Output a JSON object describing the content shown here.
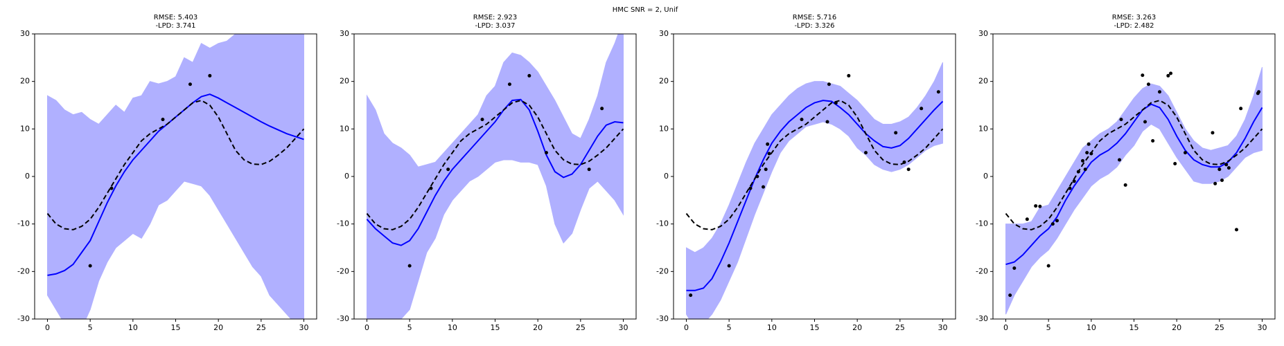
{
  "title": "HMC SNR = 2, Unif",
  "chart_data": [
    {
      "type": "line",
      "title": "RMSE: 5.403",
      "subtitle": "-LPD: 3.741",
      "xlim": [
        -1.5,
        31.5
      ],
      "ylim": [
        -30,
        30
      ],
      "xticks": [
        0,
        5,
        10,
        15,
        20,
        25,
        30
      ],
      "yticks": [
        -30,
        -20,
        -10,
        0,
        10,
        20,
        30
      ],
      "x": [
        0,
        1,
        2,
        3,
        4,
        5,
        6,
        7,
        8,
        9,
        10,
        11,
        12,
        13,
        14,
        15,
        16,
        17,
        18,
        19,
        20,
        21,
        22,
        23,
        24,
        25,
        26,
        27,
        28,
        29,
        30
      ],
      "band": {
        "color": "#b0b0ff",
        "upper": [
          17,
          16,
          14,
          13,
          13.5,
          12,
          11,
          13,
          15,
          13.5,
          16.5,
          17,
          20,
          19.5,
          20,
          21,
          25,
          24,
          28,
          27,
          28,
          28.5,
          30,
          32,
          33,
          35,
          37,
          39,
          41,
          43,
          45
        ],
        "lower": [
          -25,
          -28,
          -31,
          -33,
          -32,
          -28,
          -22,
          -18,
          -15,
          -13.5,
          -12,
          -13,
          -10,
          -6,
          -5,
          -3,
          -1,
          -1.5,
          -2,
          -4,
          -7,
          -10,
          -13,
          -16,
          -19,
          -21,
          -25,
          -27,
          -29,
          -31,
          -30
        ]
      },
      "mean": {
        "color": "#0000ff",
        "values": [
          -20.8,
          -20.5,
          -19.8,
          -18.5,
          -16,
          -13.5,
          -9.5,
          -5.5,
          -2,
          1,
          3.5,
          5.5,
          7.5,
          9.5,
          11,
          12.5,
          14,
          15.5,
          16.8,
          17.3,
          16.5,
          15.5,
          14.5,
          13.5,
          12.5,
          11.5,
          10.6,
          9.8,
          9,
          8.4,
          7.8
        ]
      },
      "truth": {
        "color": "#000000",
        "values": [
          -7.8,
          -10,
          -11,
          -11.2,
          -10.5,
          -9,
          -6.5,
          -3.5,
          -0.5,
          2.5,
          5,
          7.5,
          9,
          10,
          11,
          12.5,
          14,
          15.5,
          16,
          15,
          12.5,
          9,
          5.5,
          3.5,
          2.6,
          2.5,
          3.2,
          4.5,
          6,
          8,
          10
        ]
      },
      "points": {
        "color": "#000000",
        "x": [
          5,
          7.5,
          13.5,
          16.7,
          19
        ],
        "y": [
          -18.8,
          -2.5,
          12,
          19.4,
          21.2
        ]
      }
    },
    {
      "type": "line",
      "title": "RMSE: 2.923",
      "subtitle": "-LPD: 3.037",
      "xlim": [
        -1.5,
        31.5
      ],
      "ylim": [
        -30,
        30
      ],
      "xticks": [
        0,
        5,
        10,
        15,
        20,
        25,
        30
      ],
      "yticks": [
        -30,
        -20,
        -10,
        0,
        10,
        20,
        30
      ],
      "x": [
        0,
        1,
        2,
        3,
        4,
        5,
        6,
        7,
        8,
        9,
        10,
        11,
        12,
        13,
        14,
        15,
        16,
        17,
        18,
        19,
        20,
        21,
        22,
        23,
        24,
        25,
        26,
        27,
        28,
        29,
        30
      ],
      "band": {
        "color": "#b0b0ff",
        "upper": [
          17,
          14,
          9,
          7,
          6,
          4.5,
          2,
          2.5,
          3,
          5,
          7,
          9,
          11,
          13,
          17,
          19,
          24,
          26,
          25.5,
          24,
          22,
          19,
          16,
          12.5,
          9,
          8,
          12,
          17,
          24,
          28,
          33
        ],
        "lower": [
          -30,
          -35,
          -36,
          -34,
          -30,
          -28,
          -22,
          -16,
          -13,
          -8,
          -5,
          -3,
          -1,
          0,
          1.5,
          3,
          3.5,
          3.5,
          3,
          3,
          2.5,
          -2,
          -10,
          -14,
          -12,
          -7,
          -2.5,
          -1,
          -3,
          -5,
          -8
        ]
      },
      "mean": {
        "color": "#0000ff",
        "values": [
          -9,
          -11,
          -12.5,
          -14,
          -14.5,
          -13.5,
          -11,
          -7.5,
          -4,
          -1,
          1.5,
          3.5,
          5.5,
          7.5,
          9.5,
          11.5,
          14,
          16,
          16.2,
          14,
          9.5,
          4.5,
          1,
          -0.2,
          0.5,
          2.5,
          5.5,
          8.5,
          10.8,
          11.5,
          11.3
        ]
      },
      "truth": {
        "color": "#000000",
        "values": [
          -7.8,
          -10,
          -11,
          -11.2,
          -10.5,
          -9,
          -6.5,
          -3.5,
          -0.5,
          2.5,
          5,
          7.5,
          9,
          10,
          11,
          12.5,
          14,
          15.5,
          16,
          15,
          12.5,
          9,
          5.5,
          3.5,
          2.6,
          2.5,
          3.2,
          4.5,
          6,
          8,
          10
        ]
      },
      "points": {
        "color": "#000000",
        "x": [
          5,
          7.5,
          9.5,
          13.5,
          16.7,
          19,
          21,
          26,
          27.5
        ],
        "y": [
          -18.8,
          -2.5,
          1.5,
          12,
          19.4,
          21.2,
          5,
          1.5,
          14.3
        ]
      }
    },
    {
      "type": "line",
      "title": "RMSE: 5.716",
      "subtitle": "-LPD: 3.326",
      "xlim": [
        -1.5,
        31.5
      ],
      "ylim": [
        -30,
        30
      ],
      "xticks": [
        0,
        5,
        10,
        15,
        20,
        25,
        30
      ],
      "yticks": [
        -30,
        -20,
        -10,
        0,
        10,
        20,
        30
      ],
      "x": [
        0,
        1,
        2,
        3,
        4,
        5,
        6,
        7,
        8,
        9,
        10,
        11,
        12,
        13,
        14,
        15,
        16,
        17,
        18,
        19,
        20,
        21,
        22,
        23,
        24,
        25,
        26,
        27,
        28,
        29,
        30
      ],
      "band": {
        "color": "#b0b0ff",
        "upper": [
          -15,
          -16,
          -15,
          -13,
          -10,
          -6,
          -1.5,
          3,
          7,
          10,
          13,
          15,
          17,
          18.5,
          19.5,
          20,
          20,
          19.5,
          19,
          17.5,
          16,
          14,
          12,
          11,
          11,
          11.5,
          12.5,
          14.5,
          17,
          20,
          24
        ],
        "lower": [
          -29,
          -32,
          -31,
          -29,
          -26,
          -22,
          -18,
          -13,
          -8,
          -3.5,
          1,
          5,
          7.5,
          9,
          10.5,
          11,
          11.5,
          11,
          10,
          8.5,
          6,
          4.5,
          2.5,
          1.5,
          1,
          1.5,
          2.5,
          4,
          5.5,
          6.5,
          7
        ]
      },
      "mean": {
        "color": "#0000ff",
        "values": [
          -24,
          -24,
          -23.5,
          -21.5,
          -18,
          -14,
          -9.5,
          -5,
          -0.5,
          3.5,
          7,
          9.5,
          11.5,
          13,
          14.5,
          15.5,
          16,
          15.8,
          14.5,
          13,
          11,
          9,
          7.5,
          6.3,
          6,
          6.5,
          8,
          10,
          12,
          14,
          15.8
        ]
      },
      "truth": {
        "color": "#000000",
        "values": [
          -7.8,
          -10,
          -11,
          -11.2,
          -10.5,
          -9,
          -6.5,
          -3.5,
          -0.5,
          2.5,
          5,
          7.5,
          9,
          10,
          11,
          12.5,
          14,
          15.5,
          16,
          15,
          12.5,
          9,
          5.5,
          3.5,
          2.6,
          2.5,
          3.2,
          4.5,
          6,
          8,
          10
        ]
      },
      "points": {
        "color": "#000000",
        "x": [
          0.5,
          5,
          7.5,
          8.3,
          9,
          9.3,
          9.5,
          9.7,
          13.5,
          16.5,
          16.7,
          17.5,
          19,
          21,
          24.5,
          26,
          25.5,
          27.5,
          29.5
        ],
        "y": [
          -25,
          -18.8,
          -2.5,
          0,
          -2.2,
          1.5,
          6.8,
          4.8,
          12,
          11.5,
          19.4,
          15.5,
          21.2,
          5,
          9.2,
          1.5,
          3,
          14.3,
          17.8
        ]
      }
    },
    {
      "type": "line",
      "title": "RMSE: 3.263",
      "subtitle": "-LPD: 2.482",
      "xlim": [
        -1.5,
        31.5
      ],
      "ylim": [
        -30,
        30
      ],
      "xticks": [
        0,
        5,
        10,
        15,
        20,
        25,
        30
      ],
      "yticks": [
        -30,
        -20,
        -10,
        0,
        10,
        20,
        30
      ],
      "x": [
        0,
        1,
        2,
        3,
        4,
        5,
        6,
        7,
        8,
        9,
        10,
        11,
        12,
        13,
        14,
        15,
        16,
        17,
        18,
        19,
        20,
        21,
        22,
        23,
        24,
        25,
        26,
        27,
        28,
        29,
        30
      ],
      "band": {
        "color": "#b0b0ff",
        "upper": [
          -10,
          -10,
          -10,
          -9.5,
          -6.5,
          -6,
          -3,
          0,
          3,
          6,
          7.5,
          9,
          10,
          11.5,
          14,
          16.5,
          18.5,
          19.5,
          19,
          17,
          13.5,
          10,
          7.5,
          6,
          5.5,
          6,
          6.5,
          8.5,
          12,
          17,
          23
        ],
        "lower": [
          -29,
          -25,
          -22,
          -19,
          -17,
          -15.5,
          -13,
          -10,
          -7,
          -4.5,
          -2,
          -0.5,
          0.5,
          2,
          4.5,
          6.5,
          9.5,
          11,
          10,
          7,
          4,
          1.5,
          -1,
          -1.5,
          -1.5,
          -1,
          0,
          2,
          4,
          5,
          5.5
        ]
      },
      "mean": {
        "color": "#0000ff",
        "values": [
          -18.5,
          -18,
          -16.5,
          -14.5,
          -12.5,
          -11,
          -8.5,
          -5,
          -2,
          0.5,
          3,
          4.5,
          5.5,
          7,
          9,
          11.5,
          14,
          15.2,
          14.5,
          12,
          8.5,
          5.5,
          3.5,
          2.5,
          2,
          2,
          3,
          5,
          8,
          11.5,
          14.5
        ]
      },
      "truth": {
        "color": "#000000",
        "values": [
          -7.8,
          -10,
          -11,
          -11.2,
          -10.5,
          -9,
          -6.5,
          -3.5,
          -0.5,
          2.5,
          5,
          7.5,
          9,
          10,
          11,
          12.5,
          14,
          15.5,
          16,
          15,
          12.5,
          9,
          5.5,
          3.5,
          2.6,
          2.5,
          3.2,
          4.5,
          6,
          8,
          10
        ]
      },
      "points": {
        "color": "#000000",
        "x": [
          0.5,
          1,
          2.5,
          3.5,
          4,
          5,
          5.5,
          6,
          7.5,
          8,
          8.5,
          9,
          9.3,
          9.5,
          9.7,
          10,
          13.5,
          13.3,
          14,
          16,
          16.3,
          16.7,
          17.2,
          18,
          19,
          19.3,
          19.8,
          21,
          24.2,
          24.5,
          25,
          25.3,
          25.8,
          26.1,
          27,
          27.5,
          29.5,
          29.6
        ],
        "y": [
          -25,
          -19.3,
          -9,
          -6.2,
          -6.3,
          -18.8,
          -10,
          -9.3,
          -2.5,
          -1,
          1,
          3.3,
          1.5,
          5,
          6.8,
          4.8,
          12,
          3.5,
          -1.8,
          21.3,
          11.5,
          19.4,
          7.5,
          17.8,
          21.2,
          21.7,
          2.7,
          5,
          9.2,
          -1.5,
          1.5,
          -0.8,
          2.5,
          1.8,
          -11.2,
          14.3,
          17.5,
          17.8
        ]
      }
    }
  ]
}
